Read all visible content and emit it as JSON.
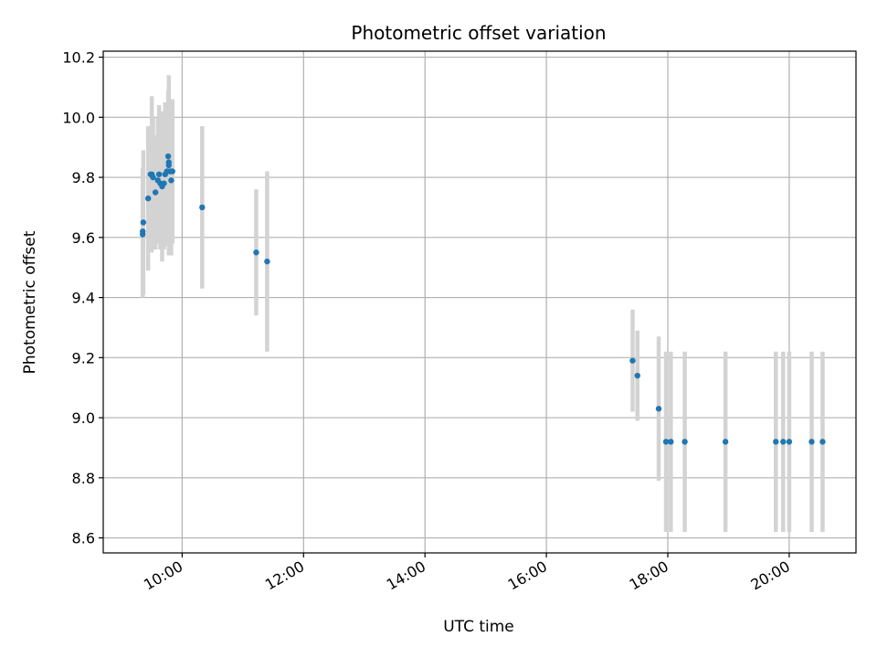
{
  "chart_data": {
    "type": "scatter",
    "title": "Photometric offset variation",
    "xlabel": "UTC time",
    "ylabel": "Photometric offset",
    "x_unit": "hour",
    "xlim": [
      8.7,
      21.1
    ],
    "ylim": [
      8.55,
      10.22
    ],
    "grid": true,
    "x_ticks": [
      10,
      12,
      14,
      16,
      18,
      20
    ],
    "x_tick_labels": [
      "10:00",
      "12:00",
      "14:00",
      "16:00",
      "18:00",
      "20:00"
    ],
    "y_ticks": [
      8.6,
      8.8,
      9.0,
      9.2,
      9.4,
      9.6,
      9.8,
      10.0,
      10.2
    ],
    "y_tick_labels": [
      "8.6",
      "8.8",
      "9.0",
      "9.2",
      "9.4",
      "9.6",
      "9.8",
      "10.0",
      "10.2"
    ],
    "colors": {
      "marker": "#1f77b4",
      "errorbar": "#d3d3d3",
      "grid": "#b0b0b0"
    },
    "points": [
      {
        "x": 9.35,
        "y": 9.61,
        "err": 0.21
      },
      {
        "x": 9.35,
        "y": 9.62,
        "err": 0.21
      },
      {
        "x": 9.36,
        "y": 9.65,
        "err": 0.24
      },
      {
        "x": 9.44,
        "y": 9.73,
        "err": 0.24
      },
      {
        "x": 9.48,
        "y": 9.81,
        "err": 0.16
      },
      {
        "x": 9.5,
        "y": 9.81,
        "err": 0.26
      },
      {
        "x": 9.52,
        "y": 9.8,
        "err": 0.2
      },
      {
        "x": 9.56,
        "y": 9.75,
        "err": 0.19
      },
      {
        "x": 9.6,
        "y": 9.79,
        "err": 0.21
      },
      {
        "x": 9.62,
        "y": 9.81,
        "err": 0.23
      },
      {
        "x": 9.64,
        "y": 9.78,
        "err": 0.22
      },
      {
        "x": 9.67,
        "y": 9.77,
        "err": 0.25
      },
      {
        "x": 9.7,
        "y": 9.78,
        "err": 0.22
      },
      {
        "x": 9.72,
        "y": 9.81,
        "err": 0.24
      },
      {
        "x": 9.75,
        "y": 9.82,
        "err": 0.23
      },
      {
        "x": 9.77,
        "y": 9.87,
        "err": 0.22
      },
      {
        "x": 9.78,
        "y": 9.84,
        "err": 0.3
      },
      {
        "x": 9.78,
        "y": 9.85,
        "err": 0.22
      },
      {
        "x": 9.8,
        "y": 9.82,
        "err": 0.23
      },
      {
        "x": 9.82,
        "y": 9.79,
        "err": 0.25
      },
      {
        "x": 9.84,
        "y": 9.82,
        "err": 0.24
      },
      {
        "x": 10.33,
        "y": 9.7,
        "err": 0.27
      },
      {
        "x": 11.22,
        "y": 9.55,
        "err": 0.21
      },
      {
        "x": 11.4,
        "y": 9.52,
        "err": 0.3
      },
      {
        "x": 17.42,
        "y": 9.19,
        "err": 0.17
      },
      {
        "x": 17.5,
        "y": 9.14,
        "err": 0.15
      },
      {
        "x": 17.85,
        "y": 9.03,
        "err": 0.24
      },
      {
        "x": 17.97,
        "y": 8.92,
        "err": 0.3
      },
      {
        "x": 18.05,
        "y": 8.92,
        "err": 0.3
      },
      {
        "x": 18.28,
        "y": 8.92,
        "err": 0.3
      },
      {
        "x": 18.95,
        "y": 8.92,
        "err": 0.3
      },
      {
        "x": 19.78,
        "y": 8.92,
        "err": 0.3
      },
      {
        "x": 19.9,
        "y": 8.92,
        "err": 0.3
      },
      {
        "x": 20.0,
        "y": 8.92,
        "err": 0.3
      },
      {
        "x": 20.37,
        "y": 8.92,
        "err": 0.3
      },
      {
        "x": 20.55,
        "y": 8.92,
        "err": 0.3
      }
    ]
  }
}
